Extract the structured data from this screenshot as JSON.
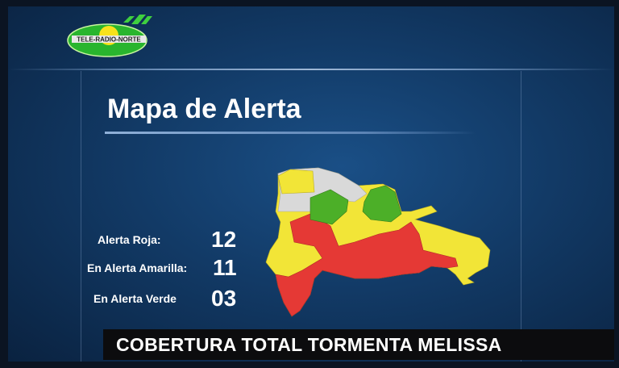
{
  "logo": {
    "text": "TELE-RADIO-NORTE"
  },
  "title": "Mapa de Alerta",
  "stats": [
    {
      "label": "Alerta Roja:",
      "value": "12",
      "color": "#e53935"
    },
    {
      "label": "En Alerta Amarilla:",
      "value": "11",
      "color": "#f2e537"
    },
    {
      "label": "En Alerta Verde",
      "value": "03",
      "color": "#4caf28"
    }
  ],
  "map": {
    "colors": {
      "red": "#e53935",
      "yellow": "#f2e537",
      "green": "#4caf28",
      "gray": "#d9d9d9"
    }
  },
  "banner": {
    "text": "COBERTURA TOTAL TORMENTA MELISSA"
  }
}
